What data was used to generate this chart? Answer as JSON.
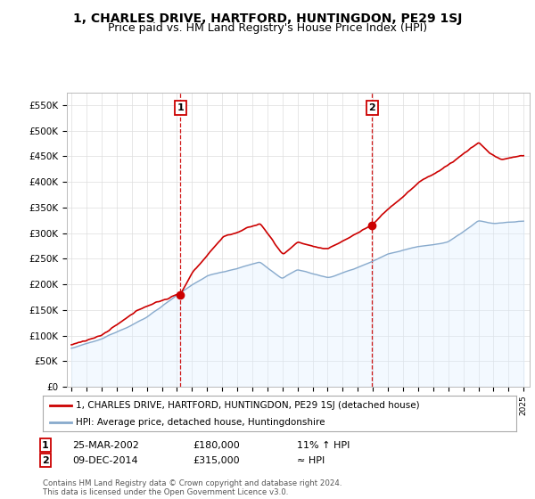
{
  "title": "1, CHARLES DRIVE, HARTFORD, HUNTINGDON, PE29 1SJ",
  "subtitle": "Price paid vs. HM Land Registry's House Price Index (HPI)",
  "title_fontsize": 10,
  "subtitle_fontsize": 9,
  "ylabel_ticks": [
    "£0",
    "£50K",
    "£100K",
    "£150K",
    "£200K",
    "£250K",
    "£300K",
    "£350K",
    "£400K",
    "£450K",
    "£500K",
    "£550K"
  ],
  "ytick_values": [
    0,
    50000,
    100000,
    150000,
    200000,
    250000,
    300000,
    350000,
    400000,
    450000,
    500000,
    550000
  ],
  "ylim": [
    0,
    575000
  ],
  "background_color": "#ffffff",
  "plot_bg_color": "#ffffff",
  "grid_color": "#dddddd",
  "sale1_year": 2002.23,
  "sale1_price": 180000,
  "sale2_year": 2014.94,
  "sale2_price": 315000,
  "house_line_color": "#cc0000",
  "hpi_line_color": "#88aacc",
  "hpi_fill_color": "#ddeeff",
  "vline_color": "#cc0000",
  "legend_house": "1, CHARLES DRIVE, HARTFORD, HUNTINGDON, PE29 1SJ (detached house)",
  "legend_hpi": "HPI: Average price, detached house, Huntingdonshire",
  "table_row1": [
    "1",
    "25-MAR-2002",
    "£180,000",
    "11% ↑ HPI"
  ],
  "table_row2": [
    "2",
    "09-DEC-2014",
    "£315,000",
    "≈ HPI"
  ],
  "footer": "Contains HM Land Registry data © Crown copyright and database right 2024.\nThis data is licensed under the Open Government Licence v3.0.",
  "xstart_year": 1995,
  "xend_year": 2025
}
